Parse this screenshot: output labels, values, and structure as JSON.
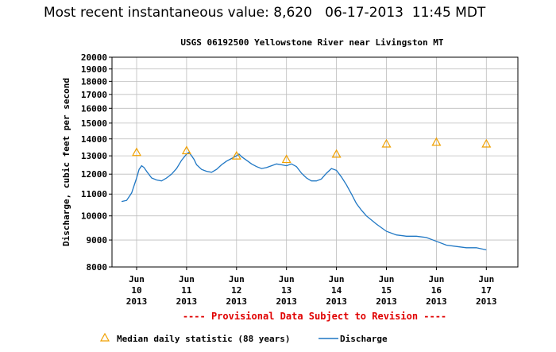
{
  "header": {
    "label": "Most recent instantaneous value:",
    "value": "8,620",
    "date": "06-17-2013",
    "time": "11:45 MDT"
  },
  "chart_data": {
    "type": "line",
    "title": "USGS 06192500 Yellowstone River near Livingston MT",
    "ylabel": "Discharge, cubic feet per second",
    "xlabel": "",
    "yscale": "log",
    "ylim": [
      8000,
      20000
    ],
    "y_ticks": [
      8000,
      9000,
      10000,
      11000,
      12000,
      13000,
      14000,
      15000,
      16000,
      17000,
      18000,
      19000,
      20000
    ],
    "y_tick_labels": [
      "8000",
      "9000",
      "10000",
      "11000",
      "12000",
      "13000",
      "14000",
      "15000",
      "16000",
      "17000",
      "18000",
      "19000",
      "20000"
    ],
    "x_ticks": [
      {
        "month": "Jun",
        "day": "10",
        "year": "2013"
      },
      {
        "month": "Jun",
        "day": "11",
        "year": "2013"
      },
      {
        "month": "Jun",
        "day": "12",
        "year": "2013"
      },
      {
        "month": "Jun",
        "day": "13",
        "year": "2013"
      },
      {
        "month": "Jun",
        "day": "14",
        "year": "2013"
      },
      {
        "month": "Jun",
        "day": "15",
        "year": "2013"
      },
      {
        "month": "Jun",
        "day": "16",
        "year": "2013"
      },
      {
        "month": "Jun",
        "day": "17",
        "year": "2013"
      }
    ],
    "grid": true,
    "provisional_note": "---- Provisional Data Subject to Revision ----",
    "series": [
      {
        "name": "Discharge",
        "color": "#1f77c4",
        "x_days": [
          -0.3,
          -0.2,
          -0.1,
          0.0,
          0.05,
          0.1,
          0.15,
          0.2,
          0.3,
          0.4,
          0.5,
          0.6,
          0.7,
          0.8,
          0.9,
          1.0,
          1.05,
          1.1,
          1.15,
          1.2,
          1.3,
          1.4,
          1.5,
          1.6,
          1.7,
          1.8,
          1.9,
          2.0,
          2.05,
          2.1,
          2.2,
          2.3,
          2.4,
          2.5,
          2.6,
          2.7,
          2.8,
          2.9,
          3.0,
          3.1,
          3.2,
          3.3,
          3.4,
          3.5,
          3.6,
          3.7,
          3.8,
          3.9,
          4.0,
          4.1,
          4.2,
          4.3,
          4.4,
          4.5,
          4.6,
          4.8,
          5.0,
          5.2,
          5.4,
          5.6,
          5.8,
          6.0,
          6.2,
          6.4,
          6.6,
          6.8,
          7.0
        ],
        "y_cfs": [
          10650,
          10700,
          11050,
          11800,
          12250,
          12450,
          12350,
          12150,
          11800,
          11700,
          11650,
          11800,
          12000,
          12300,
          12750,
          13100,
          13200,
          13000,
          12800,
          12500,
          12250,
          12150,
          12100,
          12250,
          12500,
          12700,
          12850,
          13000,
          13100,
          12950,
          12750,
          12550,
          12400,
          12300,
          12350,
          12450,
          12550,
          12500,
          12450,
          12550,
          12400,
          12050,
          11800,
          11650,
          11650,
          11750,
          12050,
          12300,
          12200,
          11850,
          11450,
          11000,
          10550,
          10250,
          10000,
          9650,
          9350,
          9200,
          9150,
          9150,
          9100,
          8950,
          8800,
          8750,
          8700,
          8700,
          8620
        ]
      },
      {
        "name": "Median daily statistic (88 years)",
        "color": "#f0a000",
        "marker": "triangle",
        "x_days": [
          0,
          1,
          2,
          3,
          4,
          5,
          6,
          7
        ],
        "y_cfs": [
          13200,
          13300,
          13000,
          12800,
          13100,
          13700,
          13800,
          13700
        ]
      }
    ]
  },
  "legend": {
    "median_label": "Median daily statistic (88 years)",
    "discharge_label": "Discharge"
  }
}
